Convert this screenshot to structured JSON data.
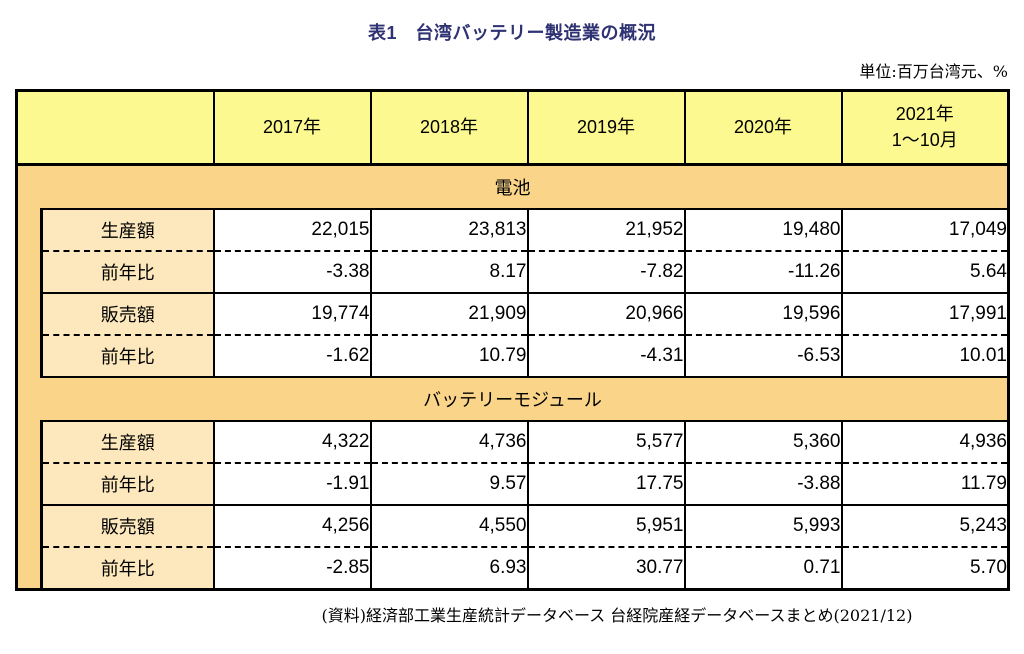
{
  "page": {
    "title": "表1　台湾バッテリー製造業の概況",
    "unit_note": "単位:百万台湾元、%",
    "source_note": "(資料)経済部工業生産統計データベース 台経院産経データベースまとめ(2021/12)"
  },
  "table": {
    "year_headers": [
      "2017年",
      "2018年",
      "2019年",
      "2020年",
      "2021年\n1〜10月"
    ],
    "sections": [
      {
        "name": "電池",
        "rows": [
          {
            "label": "生産額",
            "values": [
              "22,015",
              "23,813",
              "21,952",
              "19,480",
              "17,049"
            ]
          },
          {
            "label": "前年比",
            "values": [
              "-3.38",
              "8.17",
              "-7.82",
              "-11.26",
              "5.64"
            ]
          },
          {
            "label": "販売額",
            "values": [
              "19,774",
              "21,909",
              "20,966",
              "19,596",
              "17,991"
            ]
          },
          {
            "label": "前年比",
            "values": [
              "-1.62",
              "10.79",
              "-4.31",
              "-6.53",
              "10.01"
            ]
          }
        ]
      },
      {
        "name": "バッテリーモジュール",
        "rows": [
          {
            "label": "生産額",
            "values": [
              "4,322",
              "4,736",
              "5,577",
              "5,360",
              "4,936"
            ]
          },
          {
            "label": "前年比",
            "values": [
              "-1.91",
              "9.57",
              "17.75",
              "-3.88",
              "11.79"
            ]
          },
          {
            "label": "販売額",
            "values": [
              "4,256",
              "4,550",
              "5,951",
              "5,993",
              "5,243"
            ]
          },
          {
            "label": "前年比",
            "values": [
              "-2.85",
              "6.93",
              "30.77",
              "0.71",
              "5.70"
            ]
          }
        ]
      }
    ]
  },
  "colors": {
    "header_yellow": "#FBF98F",
    "band_orange": "#F9D489",
    "label_peach": "#FCE8BC",
    "title_navy": "#2E3272",
    "border": "#000000"
  }
}
